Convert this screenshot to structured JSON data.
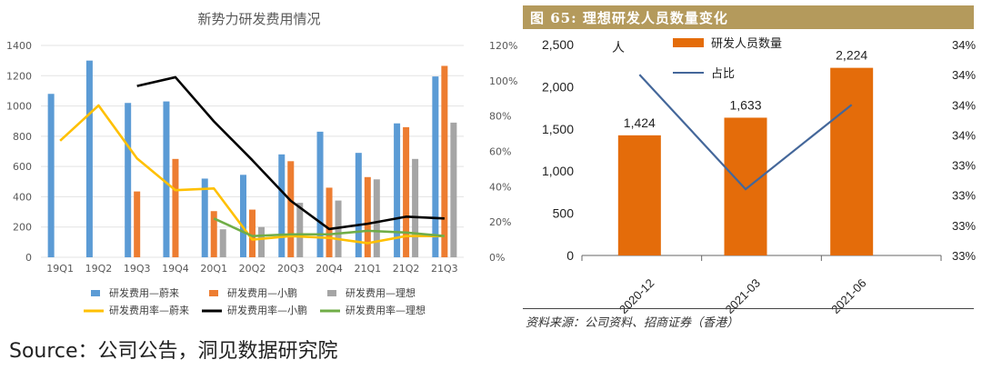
{
  "source_text": "Source：公司公告，洞见数据研究院",
  "colors": {
    "nio": "#5b9bd5",
    "xpeng": "#ed7d31",
    "li": "#a5a5a5",
    "nio_rate": "#ffc000",
    "xpeng_rate": "#000000",
    "li_rate": "#70ad47",
    "lixiang_bar": "#e46c0a",
    "lixiang_line": "#44679a",
    "header": "#b49a5c"
  },
  "chart_data": [
    {
      "type": "bar",
      "title": "新势力研发费用情况",
      "categories": [
        "19Q1",
        "19Q2",
        "19Q3",
        "19Q4",
        "20Q1",
        "20Q2",
        "20Q3",
        "20Q4",
        "21Q1",
        "21Q2",
        "21Q3"
      ],
      "y_left": {
        "ticks": [
          "0",
          "200",
          "400",
          "600",
          "800",
          "1000",
          "1200",
          "1400"
        ],
        "range": [
          0,
          1400
        ]
      },
      "y_right": {
        "ticks": [
          "0%",
          "20%",
          "40%",
          "60%",
          "80%",
          "100%",
          "120%"
        ],
        "range": [
          0,
          120
        ]
      },
      "series": [
        {
          "name": "研发费用—蔚来",
          "kind": "bar",
          "values": [
            1080,
            1300,
            1020,
            1030,
            520,
            545,
            680,
            830,
            690,
            885,
            1195
          ]
        },
        {
          "name": "研发费用—小鹏",
          "kind": "bar",
          "values": [
            null,
            null,
            435,
            650,
            305,
            315,
            635,
            460,
            530,
            860,
            1265
          ]
        },
        {
          "name": "研发费用—理想",
          "kind": "bar",
          "values": [
            null,
            null,
            null,
            null,
            185,
            200,
            360,
            375,
            515,
            650,
            890
          ]
        },
        {
          "name": "研发费用率—蔚来",
          "kind": "line",
          "axis": "right",
          "values": [
            66,
            86,
            56,
            38,
            39,
            10,
            12,
            11,
            8,
            12,
            12
          ]
        },
        {
          "name": "研发费用率—小鹏",
          "kind": "line",
          "axis": "right",
          "values": [
            null,
            null,
            97,
            102,
            77,
            55,
            32,
            16,
            19,
            23,
            22
          ]
        },
        {
          "name": "研发费用率—理想",
          "kind": "line",
          "axis": "right",
          "values": [
            null,
            null,
            null,
            null,
            22,
            12,
            13,
            13,
            15,
            14,
            12
          ]
        }
      ]
    },
    {
      "type": "bar",
      "title": "图 65: 理想研发人员数量变化",
      "categories": [
        "2020-12",
        "2021-03",
        "2021-06"
      ],
      "y_left": {
        "ticks": [
          "0",
          "500",
          "1,000",
          "1,500",
          "2,000",
          "2,500"
        ],
        "range": [
          0,
          2500
        ]
      },
      "y_right": {
        "ticks": [
          "33%",
          "33%",
          "33%",
          "33%",
          "34%",
          "34%",
          "34%",
          "34%"
        ],
        "range": [
          33.0,
          34.75
        ]
      },
      "series": [
        {
          "name": "研发人员数量",
          "kind": "bar",
          "values": [
            1424,
            1633,
            2224
          ],
          "labels": [
            "1,424",
            "1,633",
            "2,224"
          ]
        },
        {
          "name": "占比",
          "kind": "line",
          "axis": "right",
          "values": [
            34.5,
            33.55,
            34.25
          ]
        }
      ],
      "left_axis_label": "人",
      "note": "资料来源：公司资料、招商证券（香港）"
    }
  ]
}
